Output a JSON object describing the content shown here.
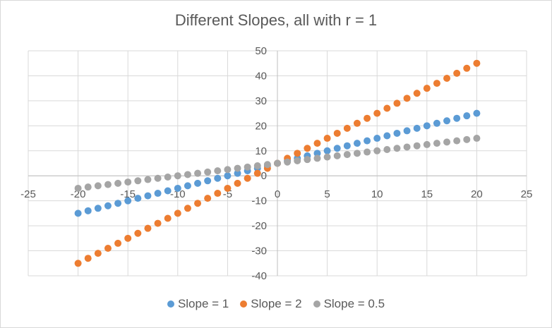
{
  "chart_data": {
    "type": "scatter",
    "title": "Different Slopes, all with r = 1",
    "xlabel": "",
    "ylabel": "",
    "xlim": [
      -25,
      25
    ],
    "ylim": [
      -40,
      50
    ],
    "x_ticks": [
      -25,
      -20,
      -15,
      -10,
      -5,
      0,
      5,
      10,
      15,
      20,
      25
    ],
    "y_ticks": [
      -40,
      -30,
      -20,
      -10,
      0,
      10,
      20,
      30,
      40,
      50
    ],
    "grid": true,
    "legend_position": "bottom",
    "series": [
      {
        "name": "Slope = 1",
        "color": "#5b9bd5",
        "slope": 1,
        "intercept": 5,
        "x_start": -20,
        "x_end": 20,
        "x_step": 1
      },
      {
        "name": "Slope = 2",
        "color": "#ed7d31",
        "slope": 2,
        "intercept": 5,
        "x_start": -20,
        "x_end": 20,
        "x_step": 1
      },
      {
        "name": "Slope = 0.5",
        "color": "#a5a5a5",
        "slope": 0.5,
        "intercept": 5,
        "x_start": -20,
        "x_end": 20,
        "x_step": 1
      }
    ]
  }
}
